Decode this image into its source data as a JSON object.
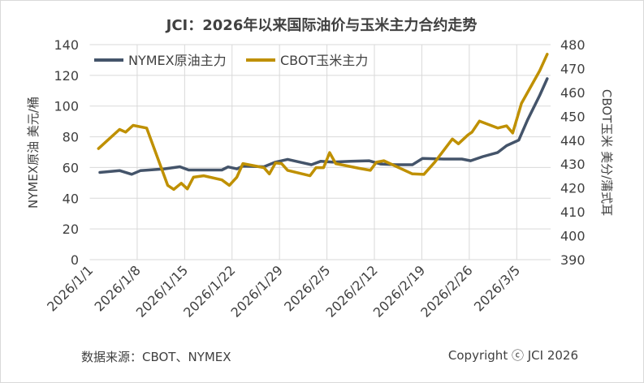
{
  "chart_data": {
    "type": "line",
    "title": "JCI：2026年以来国际油价与玉米主力合约走势",
    "ylabel_left": "NYMEX原油 美元/桶",
    "ylabel_right": "CBOT玉米 美分/蒲式耳",
    "ylim_left": [
      0,
      140
    ],
    "yticks_left": [
      0,
      20,
      40,
      60,
      80,
      100,
      120,
      140
    ],
    "ylim_right": [
      390,
      480
    ],
    "yticks_right": [
      390,
      400,
      410,
      420,
      430,
      440,
      450,
      460,
      470,
      480
    ],
    "x_ticks": [
      "2026/1/1",
      "2026/1/8",
      "2026/1/15",
      "2026/1/22",
      "2026/1/29",
      "2026/2/5",
      "2026/2/12",
      "2026/2/19",
      "2026/2/26",
      "2026/3/5"
    ],
    "x_range_days": [
      0,
      68
    ],
    "grid": true,
    "legend": "top-left",
    "series": [
      {
        "name": "NYMEX原油主力",
        "axis": "left",
        "color": "#44546a",
        "x": [
          1.5,
          4.4,
          6.2,
          7.5,
          11,
          13.3,
          14.6,
          19.5,
          20.4,
          21.7,
          22.6,
          25.7,
          27.4,
          29.2,
          31,
          32.7,
          34.1,
          35.8,
          38.5,
          41.2,
          42.9,
          45.1,
          47.6,
          49.1,
          52.2,
          54.9,
          56.2,
          58,
          60.2,
          61.5,
          63.3,
          64.6,
          66.4,
          67.5
        ],
        "values": [
          56.8,
          58,
          55.6,
          58,
          59.1,
          60.5,
          58.4,
          58.4,
          60.4,
          59.1,
          60.9,
          60.5,
          63.5,
          65.3,
          63.5,
          61.8,
          64.1,
          63.5,
          64.1,
          64.4,
          62.3,
          61.8,
          61.8,
          65.9,
          65.5,
          65.5,
          64.4,
          67.1,
          69.8,
          74.2,
          77.8,
          91,
          107,
          117.8
        ]
      },
      {
        "name": "CBOT玉米主力",
        "axis": "right",
        "color": "#bf9000",
        "x": [
          1.3,
          4.4,
          5.3,
          6.4,
          8.4,
          11.5,
          12.4,
          13.5,
          14.4,
          15.3,
          16.8,
          19.5,
          20.6,
          21.7,
          22.6,
          25.7,
          26.5,
          27.4,
          28.3,
          29.2,
          32.5,
          33.4,
          34.5,
          35.4,
          36.3,
          39.8,
          41.4,
          42.3,
          43.4,
          47.6,
          49.3,
          50.9,
          53.5,
          54.4,
          55.8,
          56.4,
          57.5,
          60.2,
          61.5,
          62.4,
          63.7,
          66.4,
          67.5
        ],
        "values": [
          436.5,
          444.5,
          443.4,
          446.2,
          445.1,
          421.1,
          419.4,
          422,
          419.6,
          424.5,
          425.1,
          423.4,
          421.1,
          424.5,
          430.2,
          428.5,
          425.9,
          430.5,
          430.2,
          427.4,
          425.1,
          428.5,
          428.5,
          434.8,
          430.2,
          428.2,
          427.4,
          430.8,
          431.4,
          425.9,
          425.7,
          430.8,
          440.5,
          438.5,
          442.2,
          443.4,
          448,
          445.1,
          446,
          443,
          455.4,
          469.1,
          476
        ]
      }
    ]
  },
  "footer": {
    "source": "数据来源：CBOT、NYMEX",
    "copyright": "Copyright ⓒ JCI 2026"
  }
}
